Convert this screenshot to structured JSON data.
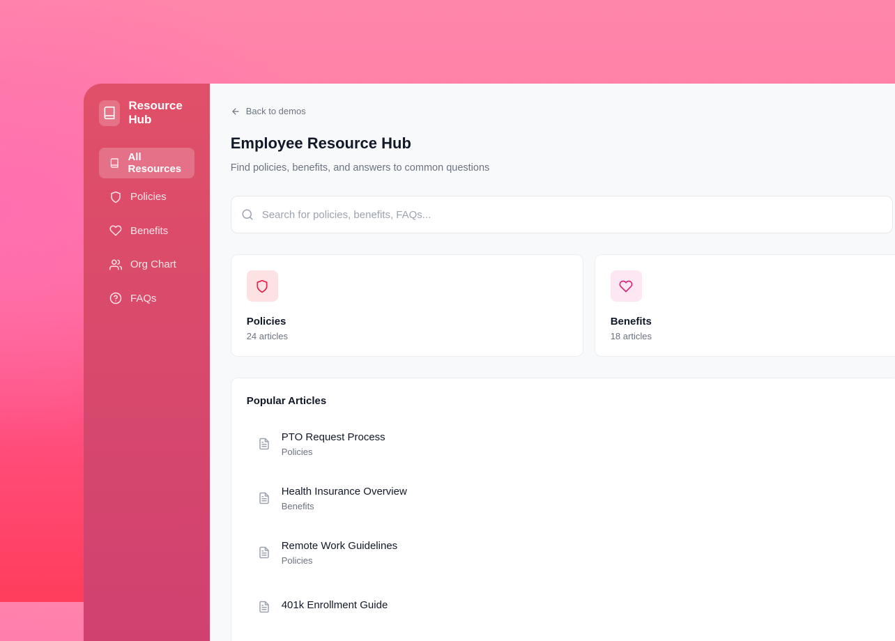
{
  "sidebar": {
    "brand": "Resource Hub",
    "items": [
      {
        "label": "All Resources",
        "icon": "book-icon",
        "active": true
      },
      {
        "label": "Policies",
        "icon": "shield-icon"
      },
      {
        "label": "Benefits",
        "icon": "heart-icon"
      },
      {
        "label": "Org Chart",
        "icon": "users-icon"
      },
      {
        "label": "FAQs",
        "icon": "help-circle-icon"
      }
    ]
  },
  "header": {
    "back": "Back to demos",
    "title": "Employee Resource Hub",
    "subtitle": "Find policies, benefits, and answers to common questions"
  },
  "search": {
    "placeholder": "Search for policies, benefits, FAQs...",
    "value": ""
  },
  "cards": [
    {
      "title": "Policies",
      "count": "24 articles",
      "color": "#e11d48",
      "bg": "#fde2e4"
    },
    {
      "title": "Benefits",
      "count": "18 articles",
      "color": "#db2777",
      "bg": "#fce7f3"
    }
  ],
  "popular": {
    "title": "Popular Articles",
    "items": [
      {
        "title": "PTO Request Process",
        "category": "Policies"
      },
      {
        "title": "Health Insurance Overview",
        "category": "Benefits"
      },
      {
        "title": "Remote Work Guidelines",
        "category": "Policies"
      },
      {
        "title": "401k Enrollment Guide",
        "category": ""
      }
    ]
  }
}
